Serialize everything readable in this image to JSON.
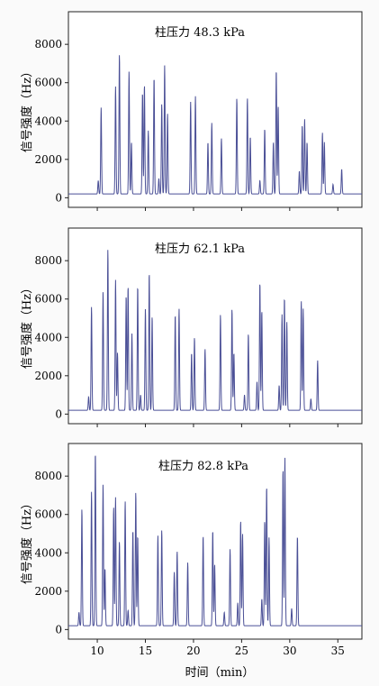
{
  "chart_data": [
    {
      "type": "line",
      "annotation": "柱压力 48.3 kPa",
      "ylabel": "信号强度（Hz）",
      "xlim": [
        7,
        37.5
      ],
      "ylim": [
        -500,
        9700
      ],
      "yticks": [
        0,
        2000,
        4000,
        6000,
        8000
      ],
      "xticks": [
        10,
        15,
        20,
        25,
        30,
        35
      ],
      "color": "#4a4f96",
      "baseline": 200,
      "peaks": [
        {
          "t": 10.1,
          "h": 700
        },
        {
          "t": 10.4,
          "h": 4500
        },
        {
          "t": 11.9,
          "h": 5600
        },
        {
          "t": 12.3,
          "h": 7300
        },
        {
          "t": 13.3,
          "h": 6400
        },
        {
          "t": 13.55,
          "h": 2700
        },
        {
          "t": 14.7,
          "h": 5300
        },
        {
          "t": 14.9,
          "h": 5700
        },
        {
          "t": 15.3,
          "h": 3300
        },
        {
          "t": 15.9,
          "h": 6100
        },
        {
          "t": 16.4,
          "h": 800
        },
        {
          "t": 16.7,
          "h": 4700
        },
        {
          "t": 17.0,
          "h": 6700
        },
        {
          "t": 17.3,
          "h": 4200
        },
        {
          "t": 19.7,
          "h": 4800
        },
        {
          "t": 20.2,
          "h": 5100
        },
        {
          "t": 21.5,
          "h": 2700
        },
        {
          "t": 21.9,
          "h": 3700
        },
        {
          "t": 22.9,
          "h": 2900
        },
        {
          "t": 24.5,
          "h": 5000
        },
        {
          "t": 25.6,
          "h": 5000
        },
        {
          "t": 25.9,
          "h": 3000
        },
        {
          "t": 26.9,
          "h": 700
        },
        {
          "t": 27.4,
          "h": 3400
        },
        {
          "t": 28.3,
          "h": 2700
        },
        {
          "t": 28.6,
          "h": 6500
        },
        {
          "t": 28.8,
          "h": 4600
        },
        {
          "t": 31.0,
          "h": 1200
        },
        {
          "t": 31.3,
          "h": 3600
        },
        {
          "t": 31.55,
          "h": 3900
        },
        {
          "t": 31.8,
          "h": 2700
        },
        {
          "t": 33.4,
          "h": 3200
        },
        {
          "t": 33.6,
          "h": 2700
        },
        {
          "t": 34.5,
          "h": 500
        },
        {
          "t": 35.4,
          "h": 1300
        }
      ]
    },
    {
      "type": "line",
      "annotation": "柱压力 62.1 kPa",
      "ylabel": "信号强度（Hz）",
      "xlim": [
        7,
        37.5
      ],
      "ylim": [
        -500,
        9700
      ],
      "yticks": [
        0,
        2000,
        4000,
        6000,
        8000
      ],
      "xticks": [
        10,
        15,
        20,
        25,
        30,
        35
      ],
      "color": "#4a4f96",
      "baseline": 200,
      "peaks": [
        {
          "t": 9.1,
          "h": 700
        },
        {
          "t": 9.4,
          "h": 5400
        },
        {
          "t": 10.6,
          "h": 6200
        },
        {
          "t": 11.1,
          "h": 8400
        },
        {
          "t": 11.9,
          "h": 6800
        },
        {
          "t": 12.1,
          "h": 3000
        },
        {
          "t": 13.0,
          "h": 6000
        },
        {
          "t": 13.2,
          "h": 6500
        },
        {
          "t": 13.6,
          "h": 4000
        },
        {
          "t": 14.2,
          "h": 6500
        },
        {
          "t": 14.5,
          "h": 800
        },
        {
          "t": 15.0,
          "h": 5300
        },
        {
          "t": 15.4,
          "h": 7200
        },
        {
          "t": 15.7,
          "h": 4900
        },
        {
          "t": 18.1,
          "h": 5000
        },
        {
          "t": 18.5,
          "h": 5300
        },
        {
          "t": 19.8,
          "h": 3000
        },
        {
          "t": 20.1,
          "h": 3800
        },
        {
          "t": 21.2,
          "h": 3200
        },
        {
          "t": 22.8,
          "h": 5000
        },
        {
          "t": 24.0,
          "h": 5300
        },
        {
          "t": 24.2,
          "h": 3000
        },
        {
          "t": 25.3,
          "h": 800
        },
        {
          "t": 25.7,
          "h": 4000
        },
        {
          "t": 26.6,
          "h": 1500
        },
        {
          "t": 26.9,
          "h": 6700
        },
        {
          "t": 27.1,
          "h": 5200
        },
        {
          "t": 28.9,
          "h": 1300
        },
        {
          "t": 29.2,
          "h": 5000
        },
        {
          "t": 29.45,
          "h": 5900
        },
        {
          "t": 29.7,
          "h": 4600
        },
        {
          "t": 31.2,
          "h": 5700
        },
        {
          "t": 31.4,
          "h": 5300
        },
        {
          "t": 32.2,
          "h": 600
        },
        {
          "t": 32.9,
          "h": 2600
        }
      ]
    },
    {
      "type": "line",
      "annotation": "柱压力 82.8 kPa",
      "ylabel": "信号强度（Hz）",
      "xlabel": "时间（min）",
      "xlim": [
        7,
        37.5
      ],
      "ylim": [
        -500,
        9700
      ],
      "yticks": [
        0,
        2000,
        4000,
        6000,
        8000
      ],
      "xticks": [
        10,
        15,
        20,
        25,
        30,
        35
      ],
      "color": "#4a4f96",
      "baseline": 200,
      "peaks": [
        {
          "t": 8.1,
          "h": 700
        },
        {
          "t": 8.4,
          "h": 6100
        },
        {
          "t": 9.4,
          "h": 7000
        },
        {
          "t": 9.8,
          "h": 9100
        },
        {
          "t": 10.6,
          "h": 7400
        },
        {
          "t": 10.8,
          "h": 3000
        },
        {
          "t": 11.7,
          "h": 6200
        },
        {
          "t": 11.9,
          "h": 6700
        },
        {
          "t": 12.3,
          "h": 4400
        },
        {
          "t": 12.9,
          "h": 6500
        },
        {
          "t": 13.2,
          "h": 800
        },
        {
          "t": 13.7,
          "h": 5000
        },
        {
          "t": 14.0,
          "h": 7000
        },
        {
          "t": 14.2,
          "h": 4700
        },
        {
          "t": 16.3,
          "h": 4700
        },
        {
          "t": 16.7,
          "h": 5000
        },
        {
          "t": 18.0,
          "h": 2800
        },
        {
          "t": 18.3,
          "h": 3900
        },
        {
          "t": 19.4,
          "h": 3300
        },
        {
          "t": 21.0,
          "h": 4700
        },
        {
          "t": 22.0,
          "h": 5000
        },
        {
          "t": 22.2,
          "h": 3200
        },
        {
          "t": 23.2,
          "h": 700
        },
        {
          "t": 23.8,
          "h": 4000
        },
        {
          "t": 24.6,
          "h": 1200
        },
        {
          "t": 24.9,
          "h": 5500
        },
        {
          "t": 25.1,
          "h": 4800
        },
        {
          "t": 27.1,
          "h": 1400
        },
        {
          "t": 27.4,
          "h": 5500
        },
        {
          "t": 27.6,
          "h": 7300
        },
        {
          "t": 27.85,
          "h": 4600
        },
        {
          "t": 29.3,
          "h": 8200
        },
        {
          "t": 29.5,
          "h": 8800
        },
        {
          "t": 30.2,
          "h": 900
        },
        {
          "t": 30.8,
          "h": 4700
        }
      ]
    }
  ]
}
